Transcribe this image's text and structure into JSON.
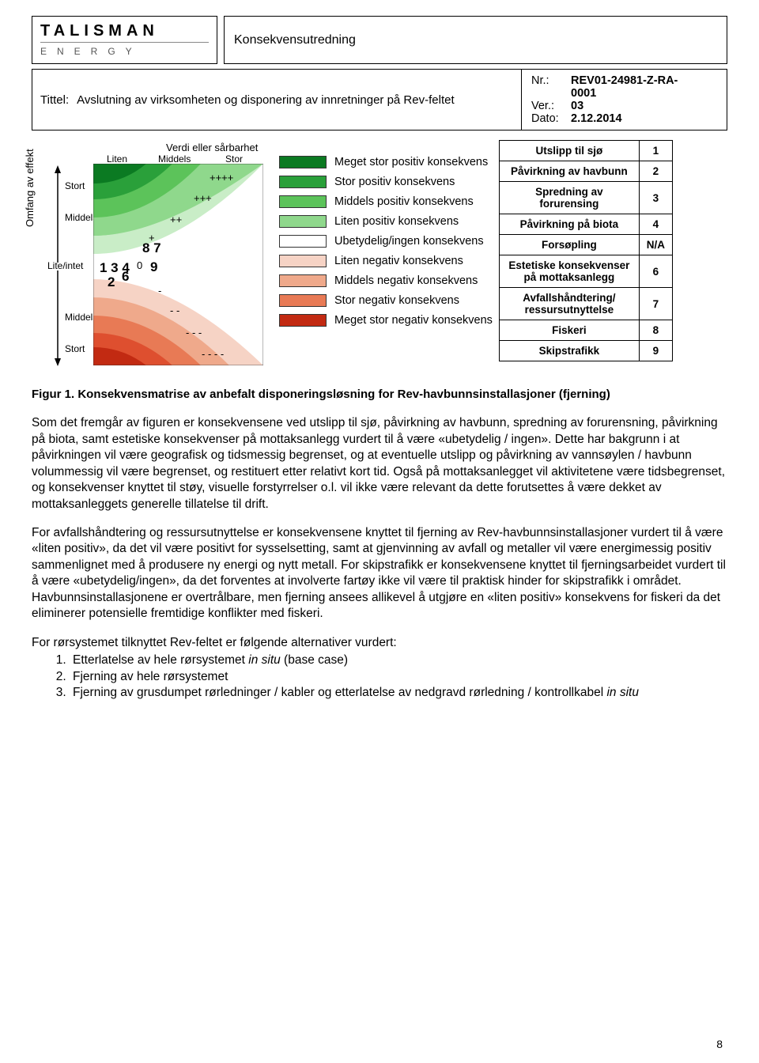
{
  "header": {
    "logo_name": "TALISMAN",
    "logo_sub": "ENERGY",
    "doc_type": "Konsekvensutredning",
    "title_label": "Tittel:",
    "title_text": "Avslutning av virksomheten og disponering av innretninger på Rev-feltet",
    "meta": {
      "nr_key": "Nr.:",
      "nr_val": "REV01-24981-Z-RA-",
      "nr_val2": "0001",
      "ver_key": "Ver.:",
      "ver_val": "03",
      "dato_key": "Dato:",
      "dato_val": "2.12.2014"
    }
  },
  "matrix": {
    "y_axis_label": "Omfang av effekt",
    "x_axis_label": "Verdi eller sårbarhet",
    "x_ticks": [
      "Liten",
      "Middels",
      "Stor"
    ],
    "y_ticks_top": [
      "Stort",
      "Middels"
    ],
    "y_center": "Lite/intet",
    "y_ticks_bot": [
      "Middels",
      "Stort"
    ],
    "symbols": [
      "++++",
      "+++",
      "++",
      "+",
      "0",
      "-",
      "- -",
      "- - -",
      "- - - -"
    ],
    "points": {
      "p134": "1 3 4",
      "p2": "2",
      "p6": "6",
      "p9": "9",
      "p87": "8 7"
    },
    "bands": [
      {
        "color": "#0b7a22"
      },
      {
        "color": "#2aa03a"
      },
      {
        "color": "#5cc35a"
      },
      {
        "color": "#8fd88c"
      },
      {
        "color": "#c9edc7"
      },
      {
        "color": "#ffffff"
      },
      {
        "color": "#f6d3c5"
      },
      {
        "color": "#efa98b"
      },
      {
        "color": "#e87a55"
      },
      {
        "color": "#de4f2f"
      },
      {
        "color": "#c22a12"
      }
    ]
  },
  "legend": [
    {
      "color": "#0b7a22",
      "label": "Meget stor positiv konsekvens"
    },
    {
      "color": "#2aa03a",
      "label": "Stor positiv konsekvens"
    },
    {
      "color": "#5cc35a",
      "label": "Middels positiv konsekvens"
    },
    {
      "color": "#8fd88c",
      "label": "Liten positiv konsekvens"
    },
    {
      "color": "#ffffff",
      "label": "Ubetydelig/ingen konsekvens"
    },
    {
      "color": "#f6d3c5",
      "label": "Liten negativ konsekvens"
    },
    {
      "color": "#efa98b",
      "label": "Middels negativ konsekvens"
    },
    {
      "color": "#e87a55",
      "label": "Stor negativ konsekvens"
    },
    {
      "color": "#c22a12",
      "label": "Meget stor negativ konsekvens"
    }
  ],
  "side_table": [
    {
      "label": "Utslipp til sjø",
      "num": "1"
    },
    {
      "label": "Påvirkning av havbunn",
      "num": "2"
    },
    {
      "label": "Spredning av forurensing",
      "num": "3"
    },
    {
      "label": "Påvirkning på biota",
      "num": "4"
    },
    {
      "label": "Forsøpling",
      "num": "N/A"
    },
    {
      "label": "Estetiske konsekvenser på mottaksanlegg",
      "num": "6"
    },
    {
      "label": "Avfallshåndtering/ ressursutnyttelse",
      "num": "7"
    },
    {
      "label": "Fiskeri",
      "num": "8"
    },
    {
      "label": "Skipstrafikk",
      "num": "9"
    }
  ],
  "caption": "Figur 1. Konsekvensmatrise av anbefalt disponeringsløsning for Rev-havbunnsinstallasjoner (fjerning)",
  "para1": "Som det fremgår av figuren er konsekvensene ved utslipp til sjø, påvirkning av havbunn, spredning av forurensning, påvirkning på biota, samt estetiske konsekvenser på mottaksanlegg vurdert til å være «ubetydelig / ingen». Dette har bakgrunn i at påvirkningen vil være geografisk og tidsmessig begrenset, og at eventuelle utslipp og påvirkning av vannsøylen / havbunn volummessig vil være begrenset, og restituert etter relativt kort tid. Også på mottaksanlegget vil aktivitetene være tidsbegrenset, og konsekvenser knyttet til støy, visuelle forstyrrelser o.l. vil ikke være relevant da dette forutsettes å være dekket av mottaksanleggets generelle tillatelse til drift.",
  "para2": "For avfallshåndtering og ressursutnyttelse er konsekvensene knyttet til fjerning av Rev-havbunnsinstallasjoner vurdert til å være «liten positiv», da det vil være positivt for sysselsetting, samt at gjenvinning av avfall og metaller vil være energimessig positiv sammenlignet med å produsere ny energi og nytt metall. For skipstrafikk er konsekvensene knyttet til fjerningsarbeidet vurdert til å være «ubetydelig/ingen», da det forventes at involverte fartøy ikke vil være til praktisk hinder for skipstrafikk i området. Havbunnsinstallasjonene er overtrålbare, men fjerning ansees allikevel å utgjøre en «liten positiv» konsekvens for fiskeri da det eliminerer potensielle fremtidige konflikter med fiskeri.",
  "list_intro": "For rørsystemet tilknyttet Rev-feltet er følgende alternativer vurdert:",
  "list": [
    "Etterlatelse av hele rørsystemet <em>in situ</em> (base case)",
    "Fjerning av hele rørsystemet",
    "Fjerning av grusdumpet rørledninger / kabler og etterlatelse av nedgravd rørledning / kontrollkabel <em>in situ</em>"
  ],
  "page_num": "8"
}
